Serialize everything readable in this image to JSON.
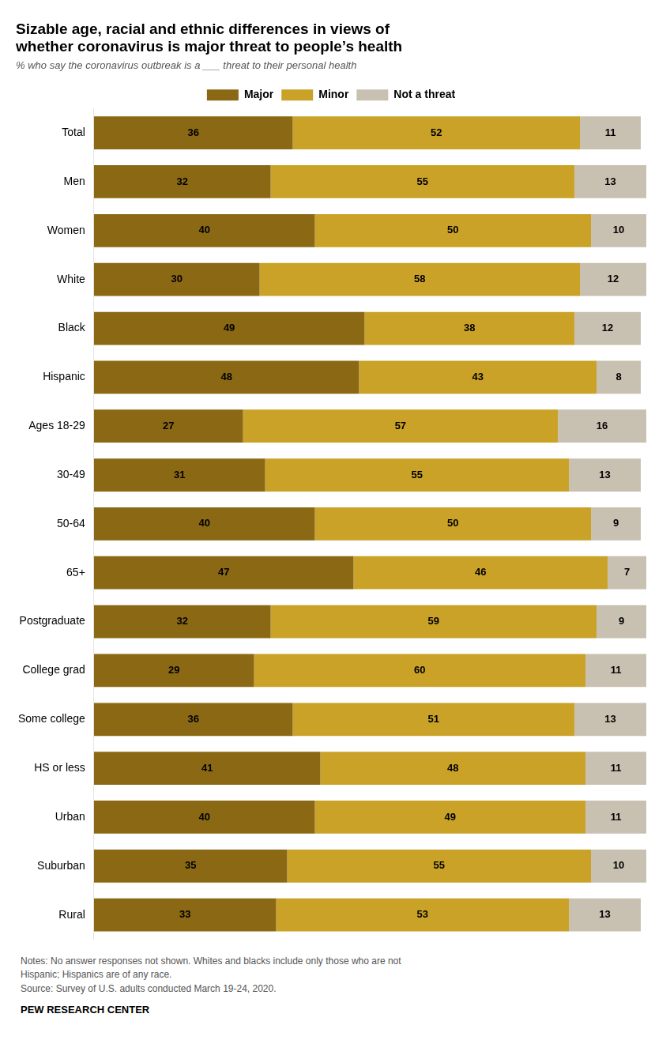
{
  "chart_data": {
    "type": "bar",
    "orientation": "horizontal",
    "stacked": true,
    "data_labels": true,
    "tick_labels": "y",
    "grid": false,
    "legend": "top",
    "title": [
      "Sizable age, racial and ethnic differences in views of",
      "whether coronavirus is major threat to people’s health"
    ],
    "subtitle": "% who say the coronavirus outbreak is a ___ threat to their personal health",
    "categories": [
      "Total",
      "Men",
      "Women",
      "White",
      "Black",
      "Hispanic",
      "Ages 18-29",
      "30-49",
      "50-64",
      "65+",
      "Postgraduate",
      "College grad",
      "Some college",
      "HS or less",
      "Urban",
      "Suburban",
      "Rural"
    ],
    "series": [
      {
        "name": "Major",
        "color": "#8B6914",
        "values": [
          36,
          32,
          40,
          30,
          49,
          48,
          27,
          31,
          40,
          47,
          32,
          29,
          36,
          41,
          40,
          35,
          33
        ]
      },
      {
        "name": "Minor",
        "color": "#C9A227",
        "values": [
          52,
          55,
          50,
          58,
          38,
          43,
          57,
          55,
          50,
          46,
          59,
          60,
          51,
          48,
          49,
          55,
          53
        ]
      },
      {
        "name": "Not a threat",
        "color": "#C8C0B0",
        "values": [
          11,
          13,
          10,
          12,
          12,
          8,
          16,
          13,
          9,
          7,
          9,
          11,
          13,
          11,
          11,
          10,
          13
        ]
      }
    ],
    "xlim": [
      0,
      100
    ],
    "notes": [
      "Notes: No answer responses not shown. Whites and blacks include only those who are not",
      "Hispanic; Hispanics are of any race.",
      "Source: Survey of U.S. adults conducted March 19-24, 2020."
    ],
    "footer": "PEW RESEARCH CENTER"
  }
}
